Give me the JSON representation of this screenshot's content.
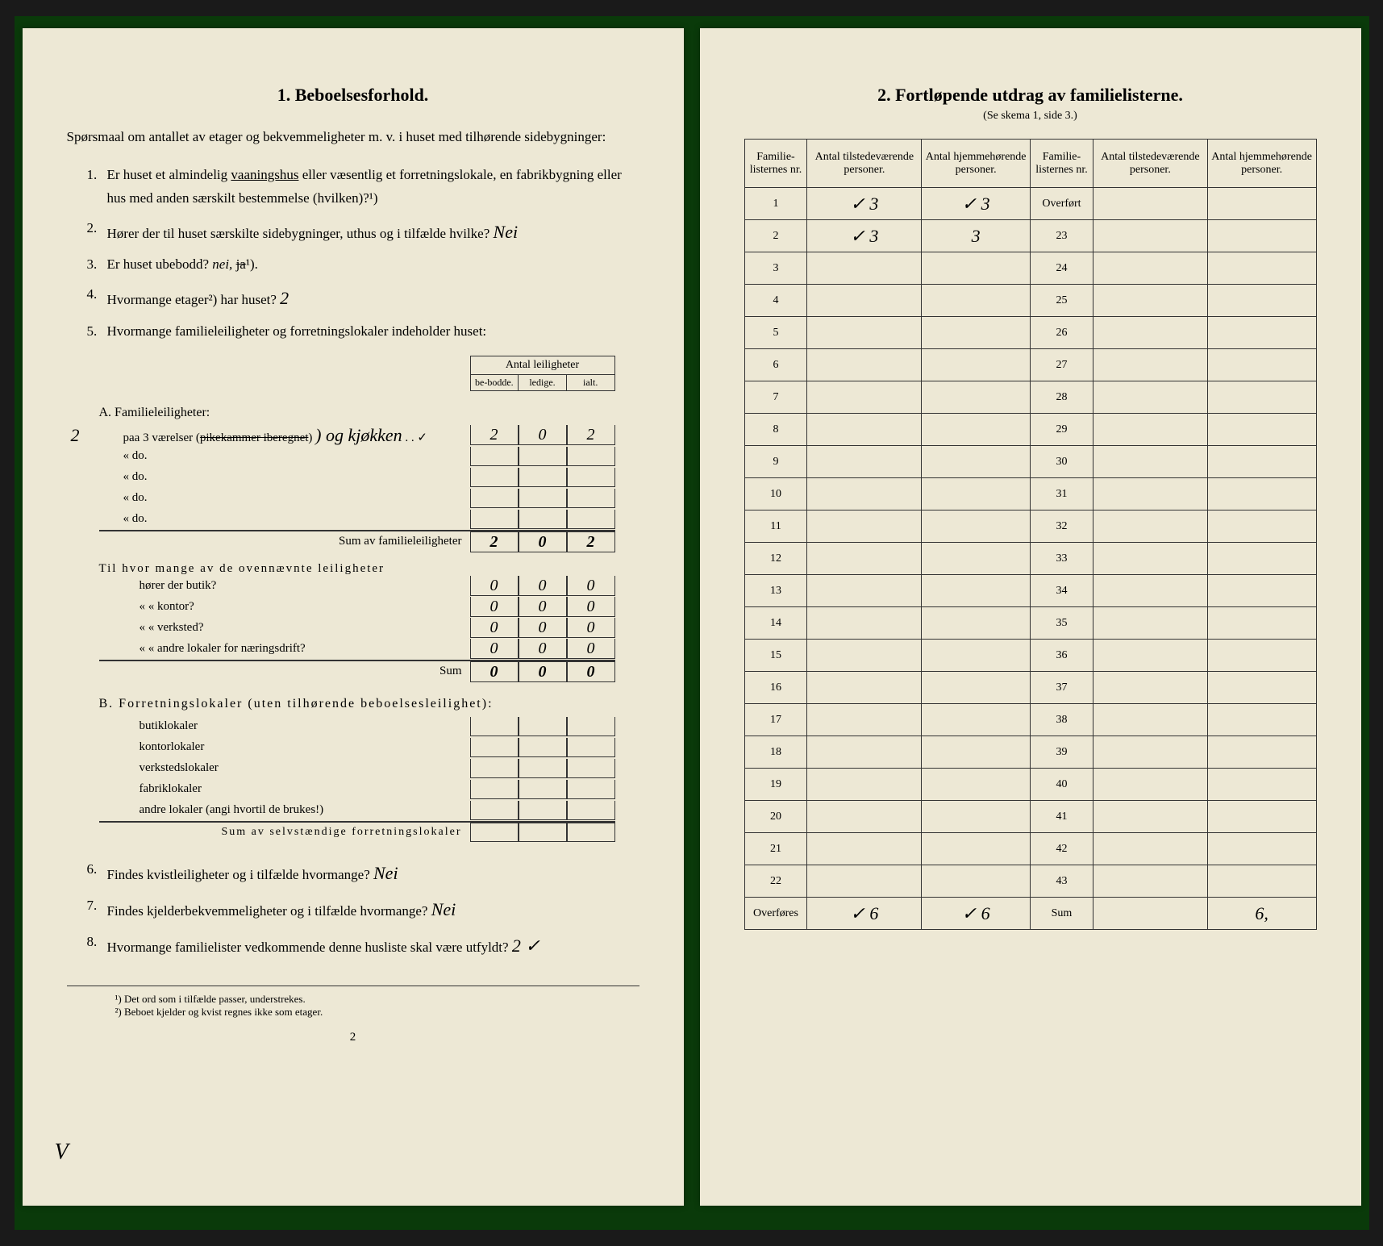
{
  "left": {
    "title": "1.   Beboelsesforhold.",
    "intro": "Spørsmaal om antallet av etager og bekvemmeligheter m. v. i huset med tilhørende sidebygninger:",
    "q1": {
      "num": "1.",
      "text": "Er huset et almindelig ",
      "underlined": "vaaningshus",
      "text2": " eller væsentlig et forretningslokale, en fabrikbygning eller hus med anden særskilt bestemmelse (hvilken)?¹)"
    },
    "q2": {
      "num": "2.",
      "text": "Hører der til huset særskilte sidebygninger, uthus og i tilfælde hvilke? ",
      "answer": "Nei"
    },
    "q3": {
      "num": "3.",
      "text": "Er huset ubebodd? ",
      "italic": "nei, ",
      "strike": "ja",
      "sup": "¹)."
    },
    "q4": {
      "num": "4.",
      "text": "Hvormange etager²) har huset? ",
      "answer": "2"
    },
    "q5": {
      "num": "5.",
      "text": "Hvormange familieleiligheter og forretningslokaler indeholder huset:"
    },
    "tableHeader": "Antal leiligheter",
    "col1": "be-bodde.",
    "col2": "ledige.",
    "col3": "ialt.",
    "sectionA": "A. Familieleiligheter:",
    "rowA1": {
      "prefix": "2",
      "label": "paa 3   værelser (",
      "strike": "pikekammer iberegnet",
      "after": ") og kjøkken",
      "c1": "2",
      "c2": "0",
      "c3": "2"
    },
    "rowA2": {
      "label": "«        do.",
      "c1": "",
      "c2": "",
      "c3": ""
    },
    "rowA3": {
      "label": "«        do.",
      "c1": "",
      "c2": "",
      "c3": ""
    },
    "rowA4": {
      "label": "«        do.",
      "c1": "",
      "c2": "",
      "c3": ""
    },
    "rowA5": {
      "label": "«        do.",
      "c1": "",
      "c2": "",
      "c3": ""
    },
    "sumA": {
      "label": "Sum av familieleiligheter",
      "c1": "2",
      "c2": "0",
      "c3": "2"
    },
    "subQ": "Til hvor mange av de ovennævnte leiligheter",
    "sub1": {
      "label": "hører der butik?",
      "c1": "0",
      "c2": "0",
      "c3": "0"
    },
    "sub2": {
      "label": "«     «   kontor?",
      "c1": "0",
      "c2": "0",
      "c3": "0"
    },
    "sub3": {
      "label": "«     «   verksted?",
      "c1": "0",
      "c2": "0",
      "c3": "0"
    },
    "sub4": {
      "label": "«     «   andre lokaler for næringsdrift?",
      "c1": "0",
      "c2": "0",
      "c3": "0"
    },
    "sumSub": {
      "label": "Sum",
      "c1": "0",
      "c2": "0",
      "c3": "0"
    },
    "sectionB": "B. Forretningslokaler (uten tilhørende beboelsesleilighet):",
    "b1": "butiklokaler",
    "b2": "kontorlokaler",
    "b3": "verkstedslokaler",
    "b4": "fabriklokaler",
    "b5": "andre lokaler (angi hvortil de brukes!)",
    "sumB": "Sum av selvstændige forretningslokaler",
    "q6": {
      "num": "6.",
      "text": "Findes kvistleiligheter og i tilfælde hvormange? ",
      "answer": "Nei"
    },
    "q7": {
      "num": "7.",
      "text": "Findes kjelderbekvemmeligheter og i tilfælde hvormange? ",
      "answer": "Nei"
    },
    "q8": {
      "num": "8.",
      "text": "Hvormange familielister vedkommende denne husliste skal være utfyldt? ",
      "answer": "2 ✓"
    },
    "fn1": "¹) Det ord som i tilfælde passer, understrekes.",
    "fn2": "²) Beboet kjelder og kvist regnes ikke som etager.",
    "pageNum": "2",
    "check": "V"
  },
  "right": {
    "title": "2.   Fortløpende utdrag av familielisterne.",
    "subtitle": "(Se skema 1, side 3.)",
    "headers": {
      "h1": "Familie-listernes nr.",
      "h2": "Antal tilstedeværende personer.",
      "h3": "Antal hjemmehørende personer.",
      "h4": "Familie-listernes nr.",
      "h5": "Antal tilstedeværende personer.",
      "h6": "Antal hjemmehørende personer."
    },
    "rows": [
      {
        "n1": "1",
        "v1": "✓ 3",
        "v2": "✓ 3",
        "n2": "Overført",
        "v3": "",
        "v4": ""
      },
      {
        "n1": "2",
        "v1": "✓ 3",
        "v2": "3",
        "n2": "23",
        "v3": "",
        "v4": ""
      },
      {
        "n1": "3",
        "v1": "",
        "v2": "",
        "n2": "24",
        "v3": "",
        "v4": ""
      },
      {
        "n1": "4",
        "v1": "",
        "v2": "",
        "n2": "25",
        "v3": "",
        "v4": ""
      },
      {
        "n1": "5",
        "v1": "",
        "v2": "",
        "n2": "26",
        "v3": "",
        "v4": ""
      },
      {
        "n1": "6",
        "v1": "",
        "v2": "",
        "n2": "27",
        "v3": "",
        "v4": ""
      },
      {
        "n1": "7",
        "v1": "",
        "v2": "",
        "n2": "28",
        "v3": "",
        "v4": ""
      },
      {
        "n1": "8",
        "v1": "",
        "v2": "",
        "n2": "29",
        "v3": "",
        "v4": ""
      },
      {
        "n1": "9",
        "v1": "",
        "v2": "",
        "n2": "30",
        "v3": "",
        "v4": ""
      },
      {
        "n1": "10",
        "v1": "",
        "v2": "",
        "n2": "31",
        "v3": "",
        "v4": ""
      },
      {
        "n1": "11",
        "v1": "",
        "v2": "",
        "n2": "32",
        "v3": "",
        "v4": ""
      },
      {
        "n1": "12",
        "v1": "",
        "v2": "",
        "n2": "33",
        "v3": "",
        "v4": ""
      },
      {
        "n1": "13",
        "v1": "",
        "v2": "",
        "n2": "34",
        "v3": "",
        "v4": ""
      },
      {
        "n1": "14",
        "v1": "",
        "v2": "",
        "n2": "35",
        "v3": "",
        "v4": ""
      },
      {
        "n1": "15",
        "v1": "",
        "v2": "",
        "n2": "36",
        "v3": "",
        "v4": ""
      },
      {
        "n1": "16",
        "v1": "",
        "v2": "",
        "n2": "37",
        "v3": "",
        "v4": ""
      },
      {
        "n1": "17",
        "v1": "",
        "v2": "",
        "n2": "38",
        "v3": "",
        "v4": ""
      },
      {
        "n1": "18",
        "v1": "",
        "v2": "",
        "n2": "39",
        "v3": "",
        "v4": ""
      },
      {
        "n1": "19",
        "v1": "",
        "v2": "",
        "n2": "40",
        "v3": "",
        "v4": ""
      },
      {
        "n1": "20",
        "v1": "",
        "v2": "",
        "n2": "41",
        "v3": "",
        "v4": ""
      },
      {
        "n1": "21",
        "v1": "",
        "v2": "",
        "n2": "42",
        "v3": "",
        "v4": ""
      },
      {
        "n1": "22",
        "v1": "",
        "v2": "",
        "n2": "43",
        "v3": "",
        "v4": ""
      }
    ],
    "footer": {
      "n1": "Overføres",
      "v1": "✓ 6",
      "v2": "✓ 6",
      "n2": "Sum",
      "v3": "",
      "v4": "6,"
    }
  },
  "colors": {
    "paper": "#ede8d5",
    "ink": "#1a1a1a",
    "border": "#333333",
    "bg": "#0a3a0a"
  }
}
